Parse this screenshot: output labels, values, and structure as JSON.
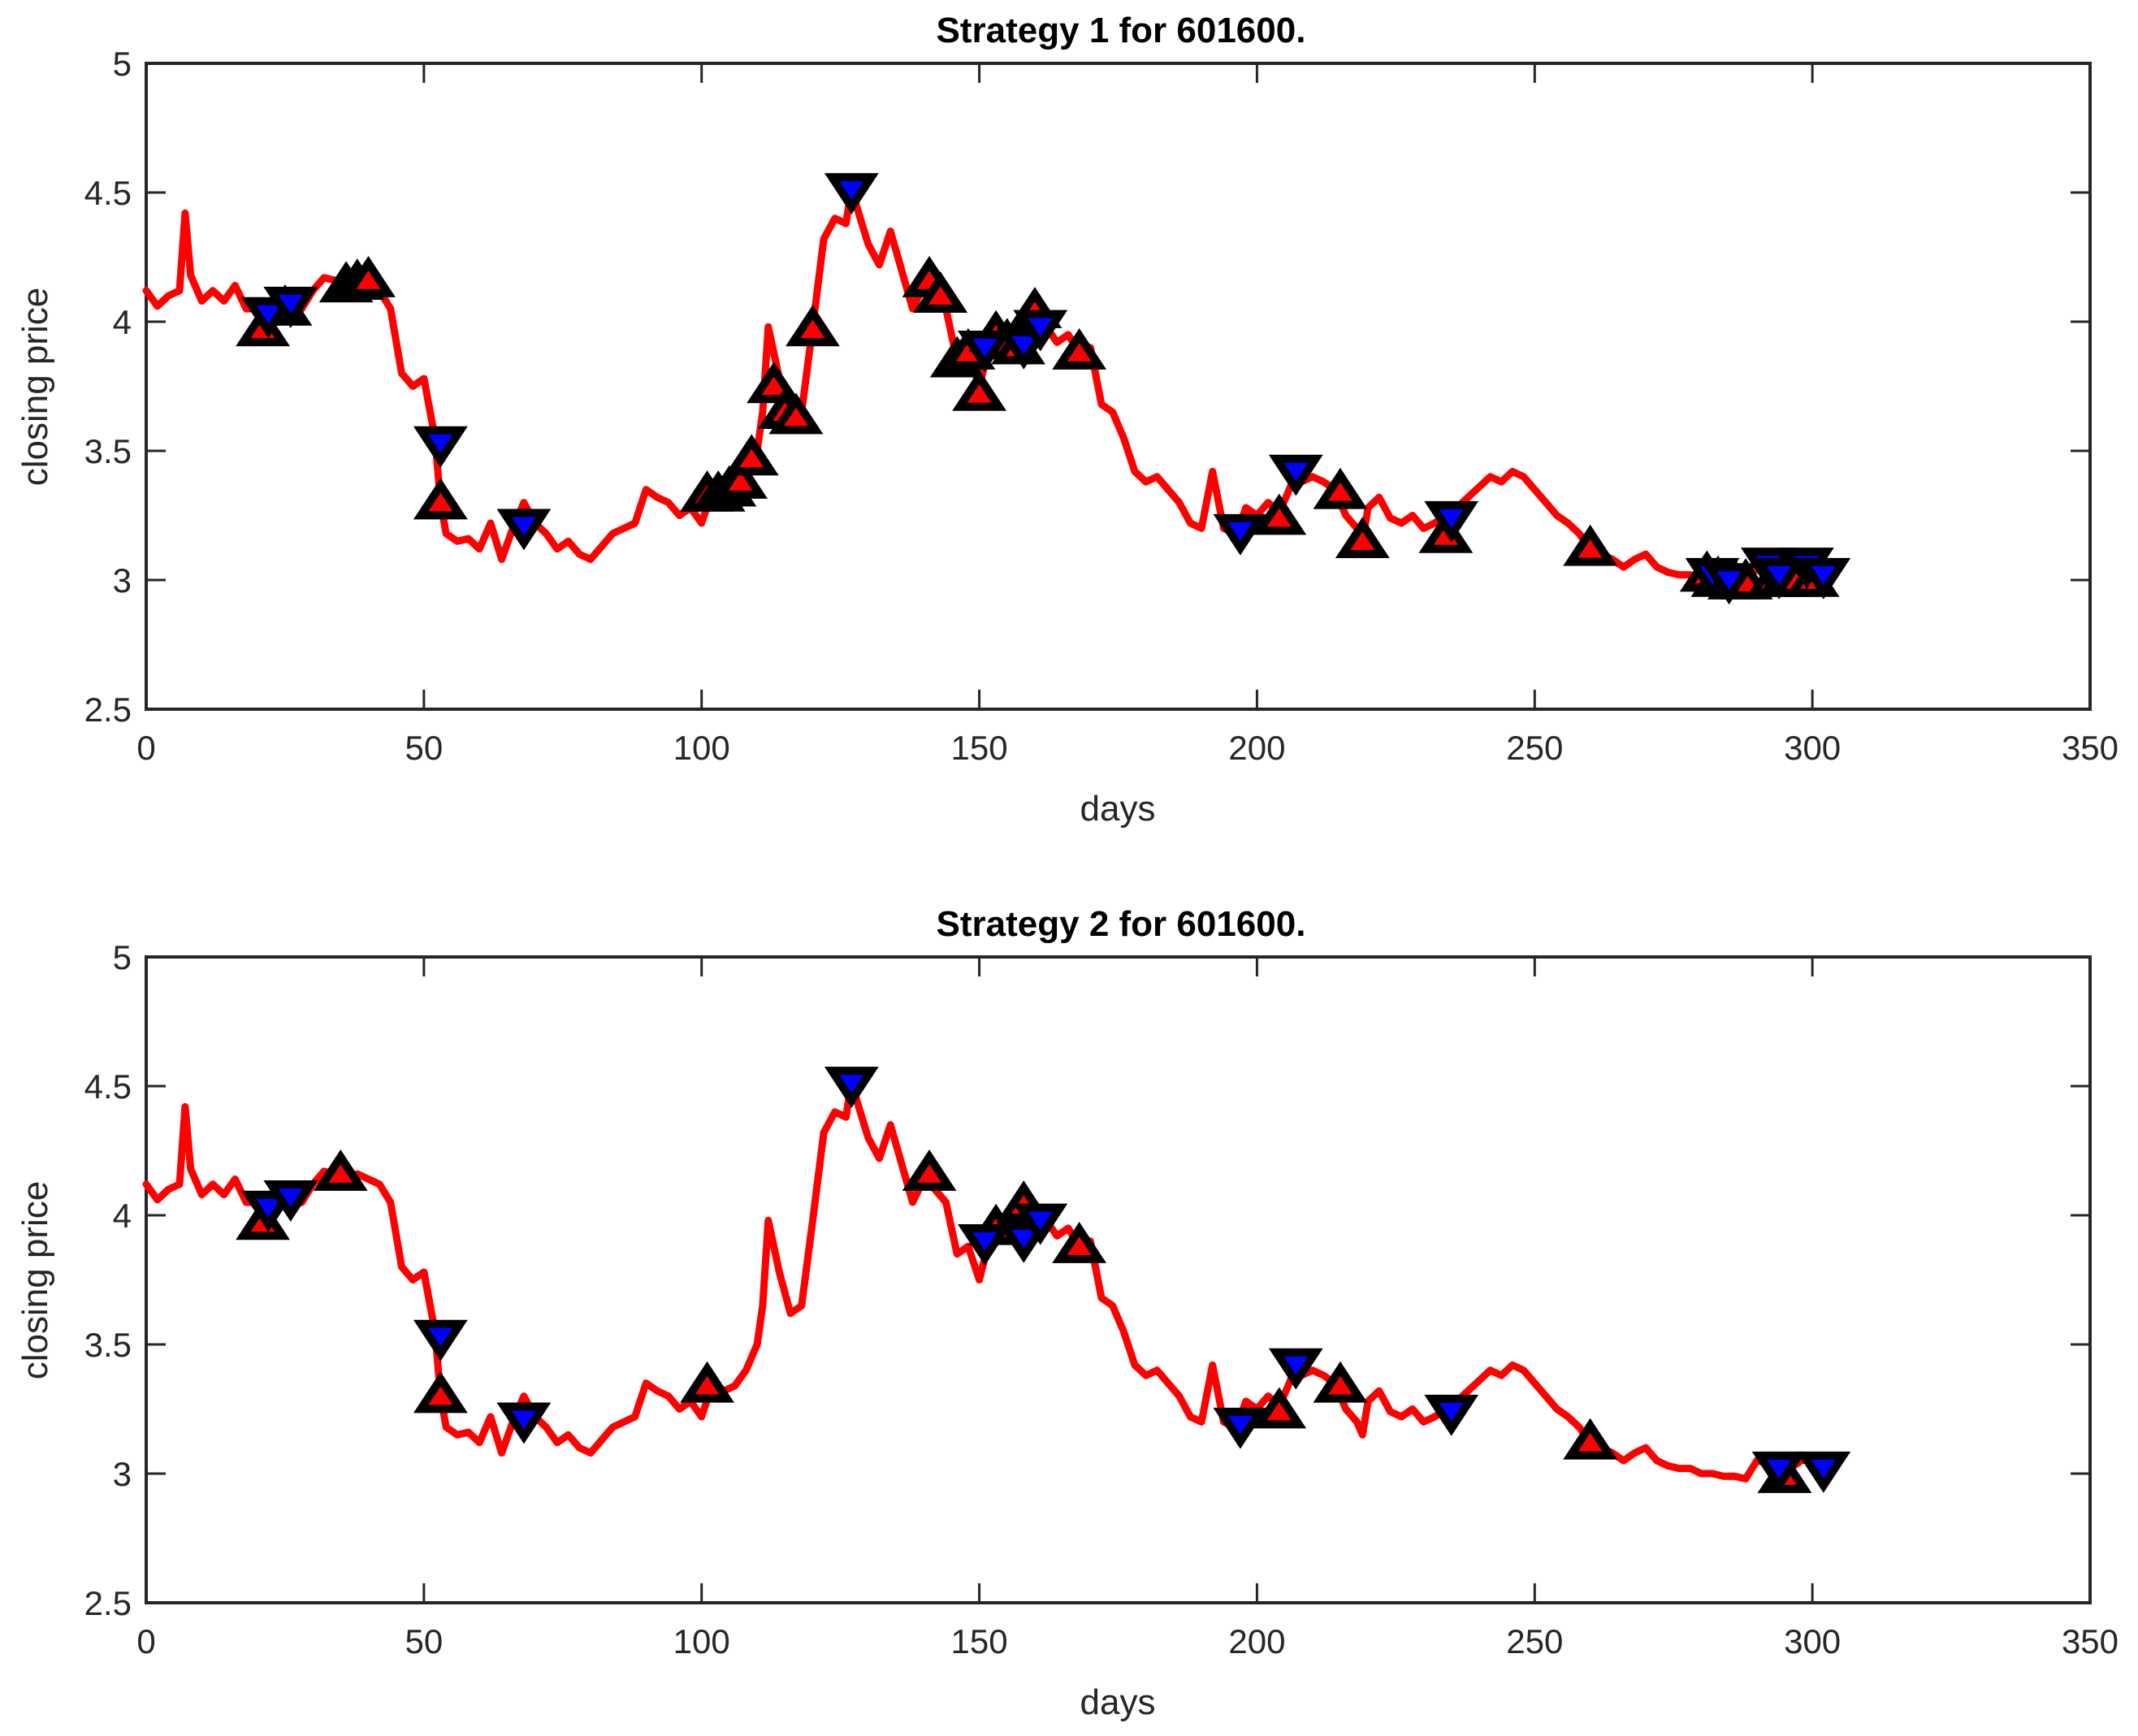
{
  "chart_data": [
    {
      "type": "line",
      "title": "Strategy 1 for 601600.",
      "xlabel": "days",
      "ylabel": "closing price",
      "xlim": [
        0,
        350
      ],
      "ylim": [
        2.5,
        5
      ],
      "xticks": [
        0,
        50,
        100,
        150,
        200,
        250,
        300,
        350
      ],
      "yticks": [
        2.5,
        3,
        3.5,
        4,
        4.5,
        5
      ],
      "grid": false,
      "series": [
        {
          "name": "closing price",
          "color": "#ff0000",
          "x": [
            0,
            2,
            4,
            6,
            7,
            8,
            10,
            12,
            14,
            16,
            18,
            20,
            21,
            22,
            24,
            26,
            28,
            30,
            32,
            34,
            36,
            38,
            40,
            42,
            44,
            46,
            48,
            50,
            52,
            53,
            54,
            56,
            58,
            60,
            62,
            64,
            66,
            68,
            70,
            72,
            74,
            76,
            78,
            80,
            82,
            84,
            86,
            88,
            90,
            92,
            94,
            96,
            98,
            100,
            102,
            104,
            106,
            108,
            110,
            111,
            112,
            114,
            116,
            118,
            120,
            122,
            124,
            126,
            127,
            128,
            130,
            132,
            134,
            136,
            138,
            140,
            142,
            144,
            146,
            148,
            150,
            152,
            154,
            156,
            158,
            160,
            162,
            164,
            166,
            168,
            170,
            172,
            174,
            176,
            178,
            180,
            182,
            184,
            186,
            188,
            190,
            192,
            194,
            196,
            197,
            198,
            200,
            202,
            204,
            206,
            207,
            208,
            210,
            212,
            214,
            216,
            218,
            219,
            220,
            222,
            224,
            226,
            228,
            230,
            232,
            234,
            236,
            238,
            240,
            242,
            244,
            246,
            248,
            250,
            252,
            254,
            256,
            258,
            260,
            262,
            264,
            266,
            268,
            270,
            272,
            274,
            276,
            278,
            280,
            282,
            284,
            286,
            288,
            290,
            292,
            294,
            296,
            298,
            300,
            302
          ],
          "values": [
            4.12,
            4.06,
            4.1,
            4.12,
            4.42,
            4.18,
            4.08,
            4.12,
            4.08,
            4.14,
            4.05,
            4.05,
            3.97,
            4.03,
            4.06,
            4.05,
            4.05,
            4.12,
            4.17,
            4.16,
            4.14,
            4.16,
            4.14,
            4.12,
            4.05,
            3.8,
            3.75,
            3.78,
            3.55,
            3.3,
            3.18,
            3.15,
            3.16,
            3.12,
            3.22,
            3.08,
            3.2,
            3.3,
            3.22,
            3.18,
            3.12,
            3.15,
            3.1,
            3.08,
            3.13,
            3.18,
            3.2,
            3.22,
            3.35,
            3.32,
            3.3,
            3.25,
            3.28,
            3.22,
            3.35,
            3.32,
            3.34,
            3.4,
            3.5,
            3.65,
            3.98,
            3.78,
            3.62,
            3.65,
            3.98,
            4.32,
            4.4,
            4.38,
            4.52,
            4.44,
            4.3,
            4.22,
            4.35,
            4.2,
            4.05,
            4.14,
            4.1,
            4.05,
            3.85,
            3.88,
            3.75,
            3.92,
            3.98,
            3.9,
            3.95,
            4.02,
            3.98,
            3.92,
            3.95,
            3.88,
            3.9,
            3.68,
            3.65,
            3.55,
            3.42,
            3.38,
            3.4,
            3.35,
            3.3,
            3.22,
            3.2,
            3.42,
            3.2,
            3.18,
            3.22,
            3.28,
            3.25,
            3.3,
            3.26,
            3.36,
            3.42,
            3.38,
            3.4,
            3.38,
            3.35,
            3.25,
            3.2,
            3.15,
            3.28,
            3.32,
            3.24,
            3.22,
            3.25,
            3.2,
            3.22,
            3.25,
            3.28,
            3.32,
            3.36,
            3.4,
            3.38,
            3.42,
            3.4,
            3.35,
            3.3,
            3.25,
            3.22,
            3.18,
            3.12,
            3.1,
            3.08,
            3.05,
            3.08,
            3.1,
            3.05,
            3.03,
            3.02,
            3.02,
            3.0,
            3.0,
            2.99,
            2.99,
            2.98,
            3.05,
            3.04,
            3.06,
            3.02,
            3.05,
            3.06,
            3.04
          ]
        }
      ],
      "markers": {
        "buy": {
          "marker": "up-triangle",
          "edge": "#000000",
          "face": "#ff0000",
          "x": [
            21,
            25,
            36,
            38,
            40,
            53,
            101,
            103,
            105,
            107,
            109,
            113,
            115,
            117,
            120,
            141,
            143,
            146,
            148,
            150,
            153,
            155,
            157,
            160,
            168,
            204,
            215,
            219,
            234,
            260,
            281,
            283,
            286,
            288,
            293,
            295,
            297,
            300
          ],
          "y": [
            3.97,
            4.05,
            4.14,
            4.15,
            4.16,
            3.3,
            3.33,
            3.33,
            3.35,
            3.38,
            3.47,
            3.75,
            3.65,
            3.63,
            3.97,
            4.16,
            4.1,
            3.85,
            3.88,
            3.72,
            3.95,
            3.92,
            3.9,
            4.04,
            3.88,
            3.24,
            3.34,
            3.15,
            3.17,
            3.12,
            3.02,
            3.0,
            2.99,
            2.99,
            3.0,
            3.0,
            3.0,
            3.0
          ]
        },
        "sell": {
          "marker": "down-triangle",
          "edge": "#000000",
          "face": "#0000ff",
          "x": [
            22,
            26,
            53,
            68,
            127,
            151,
            158,
            161,
            197,
            207,
            235,
            282,
            285,
            292,
            294,
            299,
            302
          ],
          "y": [
            4.03,
            4.07,
            3.53,
            3.21,
            4.51,
            3.9,
            3.91,
            3.98,
            3.19,
            3.42,
            3.24,
            3.02,
            3.0,
            3.06,
            3.02,
            3.06,
            3.02
          ]
        }
      }
    },
    {
      "type": "line",
      "title": "Strategy 2 for 601600.",
      "xlabel": "days",
      "ylabel": "closing price",
      "xlim": [
        0,
        350
      ],
      "ylim": [
        2.5,
        5
      ],
      "xticks": [
        0,
        50,
        100,
        150,
        200,
        250,
        300,
        350
      ],
      "yticks": [
        2.5,
        3,
        3.5,
        4,
        4.5,
        5
      ],
      "grid": false,
      "series": [
        {
          "name": "closing price",
          "color": "#ff0000",
          "x": [
            0,
            2,
            4,
            6,
            7,
            8,
            10,
            12,
            14,
            16,
            18,
            20,
            21,
            22,
            24,
            26,
            28,
            30,
            32,
            34,
            36,
            38,
            40,
            42,
            44,
            46,
            48,
            50,
            52,
            53,
            54,
            56,
            58,
            60,
            62,
            64,
            66,
            68,
            70,
            72,
            74,
            76,
            78,
            80,
            82,
            84,
            86,
            88,
            90,
            92,
            94,
            96,
            98,
            100,
            102,
            104,
            106,
            108,
            110,
            111,
            112,
            114,
            116,
            118,
            120,
            122,
            124,
            126,
            127,
            128,
            130,
            132,
            134,
            136,
            138,
            140,
            142,
            144,
            146,
            148,
            150,
            152,
            154,
            156,
            158,
            160,
            162,
            164,
            166,
            168,
            170,
            172,
            174,
            176,
            178,
            180,
            182,
            184,
            186,
            188,
            190,
            192,
            194,
            196,
            197,
            198,
            200,
            202,
            204,
            206,
            207,
            208,
            210,
            212,
            214,
            216,
            218,
            219,
            220,
            222,
            224,
            226,
            228,
            230,
            232,
            234,
            236,
            238,
            240,
            242,
            244,
            246,
            248,
            250,
            252,
            254,
            256,
            258,
            260,
            262,
            264,
            266,
            268,
            270,
            272,
            274,
            276,
            278,
            280,
            282,
            284,
            286,
            288,
            290,
            292,
            294,
            296,
            298,
            300,
            302
          ],
          "values": [
            4.12,
            4.06,
            4.1,
            4.12,
            4.42,
            4.18,
            4.08,
            4.12,
            4.08,
            4.14,
            4.05,
            4.05,
            3.97,
            4.03,
            4.06,
            4.05,
            4.05,
            4.12,
            4.17,
            4.16,
            4.14,
            4.16,
            4.14,
            4.12,
            4.05,
            3.8,
            3.75,
            3.78,
            3.55,
            3.3,
            3.18,
            3.15,
            3.16,
            3.12,
            3.22,
            3.08,
            3.2,
            3.3,
            3.22,
            3.18,
            3.12,
            3.15,
            3.1,
            3.08,
            3.13,
            3.18,
            3.2,
            3.22,
            3.35,
            3.32,
            3.3,
            3.25,
            3.28,
            3.22,
            3.35,
            3.32,
            3.34,
            3.4,
            3.5,
            3.65,
            3.98,
            3.78,
            3.62,
            3.65,
            3.98,
            4.32,
            4.4,
            4.38,
            4.52,
            4.44,
            4.3,
            4.22,
            4.35,
            4.2,
            4.05,
            4.14,
            4.1,
            4.05,
            3.85,
            3.88,
            3.75,
            3.92,
            3.98,
            3.9,
            3.95,
            4.02,
            3.98,
            3.92,
            3.95,
            3.88,
            3.9,
            3.68,
            3.65,
            3.55,
            3.42,
            3.38,
            3.4,
            3.35,
            3.3,
            3.22,
            3.2,
            3.42,
            3.2,
            3.18,
            3.22,
            3.28,
            3.25,
            3.3,
            3.26,
            3.36,
            3.42,
            3.38,
            3.4,
            3.38,
            3.35,
            3.25,
            3.2,
            3.15,
            3.28,
            3.32,
            3.24,
            3.22,
            3.25,
            3.2,
            3.22,
            3.25,
            3.28,
            3.32,
            3.36,
            3.4,
            3.38,
            3.42,
            3.4,
            3.35,
            3.3,
            3.25,
            3.22,
            3.18,
            3.12,
            3.1,
            3.08,
            3.05,
            3.08,
            3.1,
            3.05,
            3.03,
            3.02,
            3.02,
            3.0,
            3.0,
            2.99,
            2.99,
            2.98,
            3.05,
            3.04,
            3.06,
            3.02,
            3.05,
            3.06,
            3.04
          ]
        }
      ],
      "markers": {
        "buy": {
          "marker": "up-triangle",
          "edge": "#000000",
          "face": "#ff0000",
          "x": [
            21,
            35,
            53,
            101,
            141,
            153,
            158,
            168,
            204,
            215,
            260,
            295
          ],
          "y": [
            3.97,
            4.16,
            3.3,
            3.34,
            4.16,
            3.95,
            4.04,
            3.88,
            3.24,
            3.34,
            3.12,
            2.99
          ]
        },
        "sell": {
          "marker": "down-triangle",
          "edge": "#000000",
          "face": "#0000ff",
          "x": [
            22,
            26,
            53,
            68,
            127,
            151,
            158,
            161,
            197,
            207,
            235,
            294,
            302
          ],
          "y": [
            4.03,
            4.07,
            3.53,
            3.21,
            4.51,
            3.9,
            3.91,
            3.98,
            3.19,
            3.42,
            3.24,
            3.02,
            3.02
          ]
        }
      }
    }
  ]
}
